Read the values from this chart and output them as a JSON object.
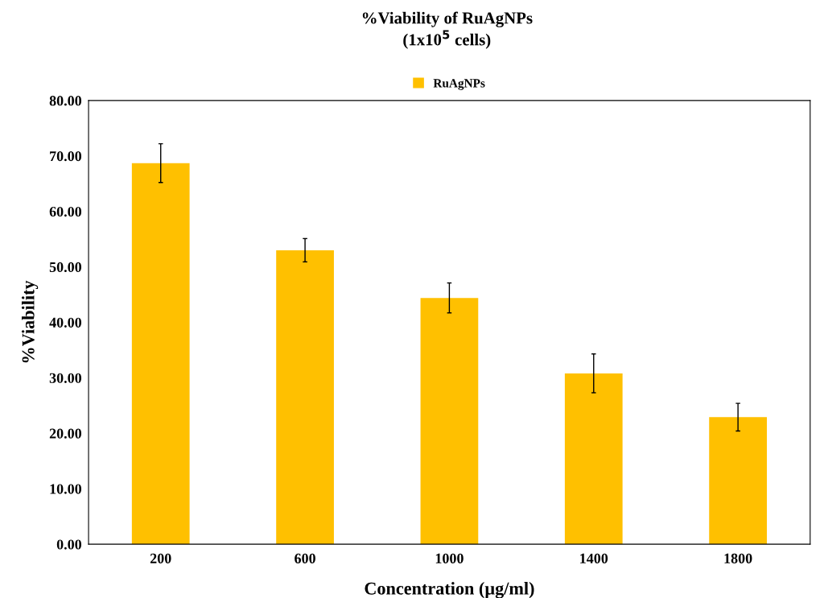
{
  "chart_data": {
    "type": "bar",
    "title": "%Viability of RuAgNPs\n(1x10$^{5}$ cells)",
    "xlabel": "Concentration (µg/ml)",
    "ylabel": "%Viability",
    "categories": [
      "200",
      "600",
      "1000",
      "1400",
      "1800"
    ],
    "series": [
      {
        "name": "RuAgNPs",
        "color": "#ffc000",
        "values": [
          68.7,
          53.0,
          44.4,
          30.8,
          22.9
        ],
        "errors": [
          3.5,
          2.1,
          2.7,
          3.5,
          2.5
        ]
      }
    ],
    "ylim": [
      0,
      80
    ],
    "yticks": [
      {
        "value": 0,
        "label": "0.00"
      },
      {
        "value": 10,
        "label": "10.00"
      },
      {
        "value": 20,
        "label": "20.00"
      },
      {
        "value": 30,
        "label": "30.00"
      },
      {
        "value": 40,
        "label": "40.00"
      },
      {
        "value": 50,
        "label": "50.00"
      },
      {
        "value": 60,
        "label": "60.00"
      },
      {
        "value": 70,
        "label": "70.00"
      },
      {
        "value": 80,
        "label": "80.00"
      }
    ],
    "grid": false,
    "legend": "top"
  }
}
